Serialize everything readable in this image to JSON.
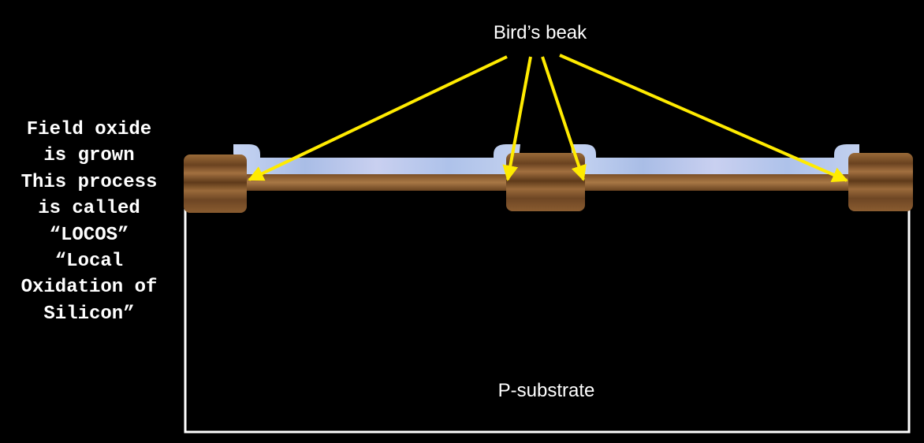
{
  "caption": {
    "lines": [
      "Field oxide",
      "is grown",
      "This process",
      "is called",
      "“LOCOS”",
      "“Local",
      "Oxidation of",
      "Silicon”"
    ]
  },
  "labels": {
    "birds_beak": "Bird’s beak",
    "substrate": "P-substrate"
  },
  "colors": {
    "background": "#000000",
    "substrate_outline": "#ffffff",
    "arrow": "#ffeb00",
    "field_oxide": "#8a5a2c",
    "nitride": "#b8c8ea"
  }
}
